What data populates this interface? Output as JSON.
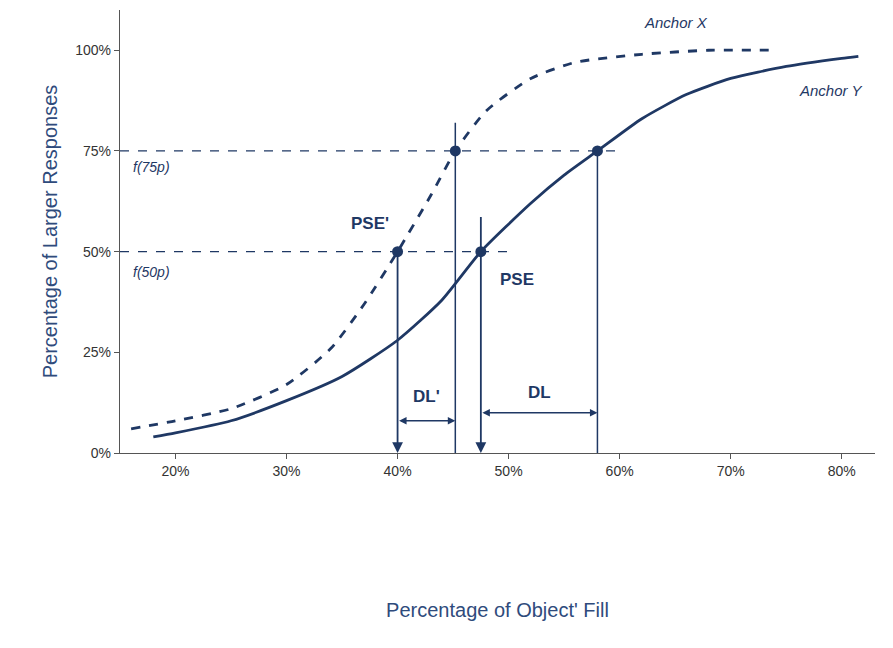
{
  "chart_data": {
    "type": "line",
    "x_label": "Percentage of Object' Fill",
    "y_label": "Percentage of Larger Responses",
    "xlim": [
      15,
      83
    ],
    "ylim": [
      0,
      110
    ],
    "xticks": [
      {
        "value": 20,
        "label": "20%"
      },
      {
        "value": 30,
        "label": "30%"
      },
      {
        "value": 40,
        "label": "40%"
      },
      {
        "value": 50,
        "label": "50%"
      },
      {
        "value": 60,
        "label": "60%"
      },
      {
        "value": 70,
        "label": "70%"
      },
      {
        "value": 80,
        "label": "80%"
      }
    ],
    "yticks": [
      {
        "value": 0,
        "label": "0%"
      },
      {
        "value": 25,
        "label": "25%"
      },
      {
        "value": 50,
        "label": "50%"
      },
      {
        "value": 75,
        "label": "75%"
      },
      {
        "value": 100,
        "label": "100%"
      }
    ],
    "grid": false,
    "color": "#1f3864",
    "series": [
      {
        "name": "Anchor X",
        "line_style": "dashed",
        "color": "#1f3864",
        "x": [
          16,
          20,
          25,
          30,
          34,
          37,
          40,
          43,
          45.2,
          48,
          52,
          56,
          62,
          68,
          74
        ],
        "values": [
          6,
          8,
          11,
          17,
          26,
          37,
          50,
          64,
          75,
          85,
          93,
          97,
          99,
          100,
          100
        ],
        "label_at": {
          "x": 62,
          "y": 107
        }
      },
      {
        "name": "Anchor Y",
        "line_style": "solid",
        "color": "#1f3864",
        "x": [
          18,
          20,
          25,
          30,
          35,
          40,
          44,
          47.5,
          52,
          55,
          58,
          62,
          66,
          70,
          75,
          80,
          81.5
        ],
        "values": [
          4,
          5,
          8,
          13,
          19,
          28,
          38,
          50,
          62,
          69,
          75,
          83,
          89,
          93,
          96,
          98,
          98.5
        ],
        "label_at": {
          "x": 76,
          "y": 90
        }
      }
    ],
    "points": [
      {
        "x": 40,
        "y": 50
      },
      {
        "x": 45.2,
        "y": 75
      },
      {
        "x": 47.5,
        "y": 50
      },
      {
        "x": 58,
        "y": 75
      }
    ],
    "hlines": [
      {
        "y": 75,
        "x_to": 60,
        "label": "f(75p)",
        "label_at": {
          "x": 16,
          "y": 71
        }
      },
      {
        "y": 50,
        "x_to": 50.5,
        "label": "f(50p)",
        "label_at": {
          "x": 16,
          "y": 45
        }
      }
    ],
    "vlines": [
      {
        "x": 40,
        "y_to": 50,
        "arrow": true
      },
      {
        "x": 45.2,
        "y_to": 82,
        "arrow": false
      },
      {
        "x": 47.5,
        "y_to": 59,
        "arrow": true
      },
      {
        "x": 58,
        "y_to": 75,
        "arrow": false
      }
    ],
    "intervals": [
      {
        "label": "DL'",
        "from": 40,
        "to": 45.2,
        "y": 8,
        "label_y": 14
      },
      {
        "label": "DL",
        "from": 47.5,
        "to": 58,
        "y": 10,
        "label_y": 15
      }
    ],
    "annotations": [
      {
        "text": "PSE'",
        "x": 37.5,
        "y": 57
      },
      {
        "text": "PSE",
        "x": 50.8,
        "y": 43
      }
    ]
  }
}
